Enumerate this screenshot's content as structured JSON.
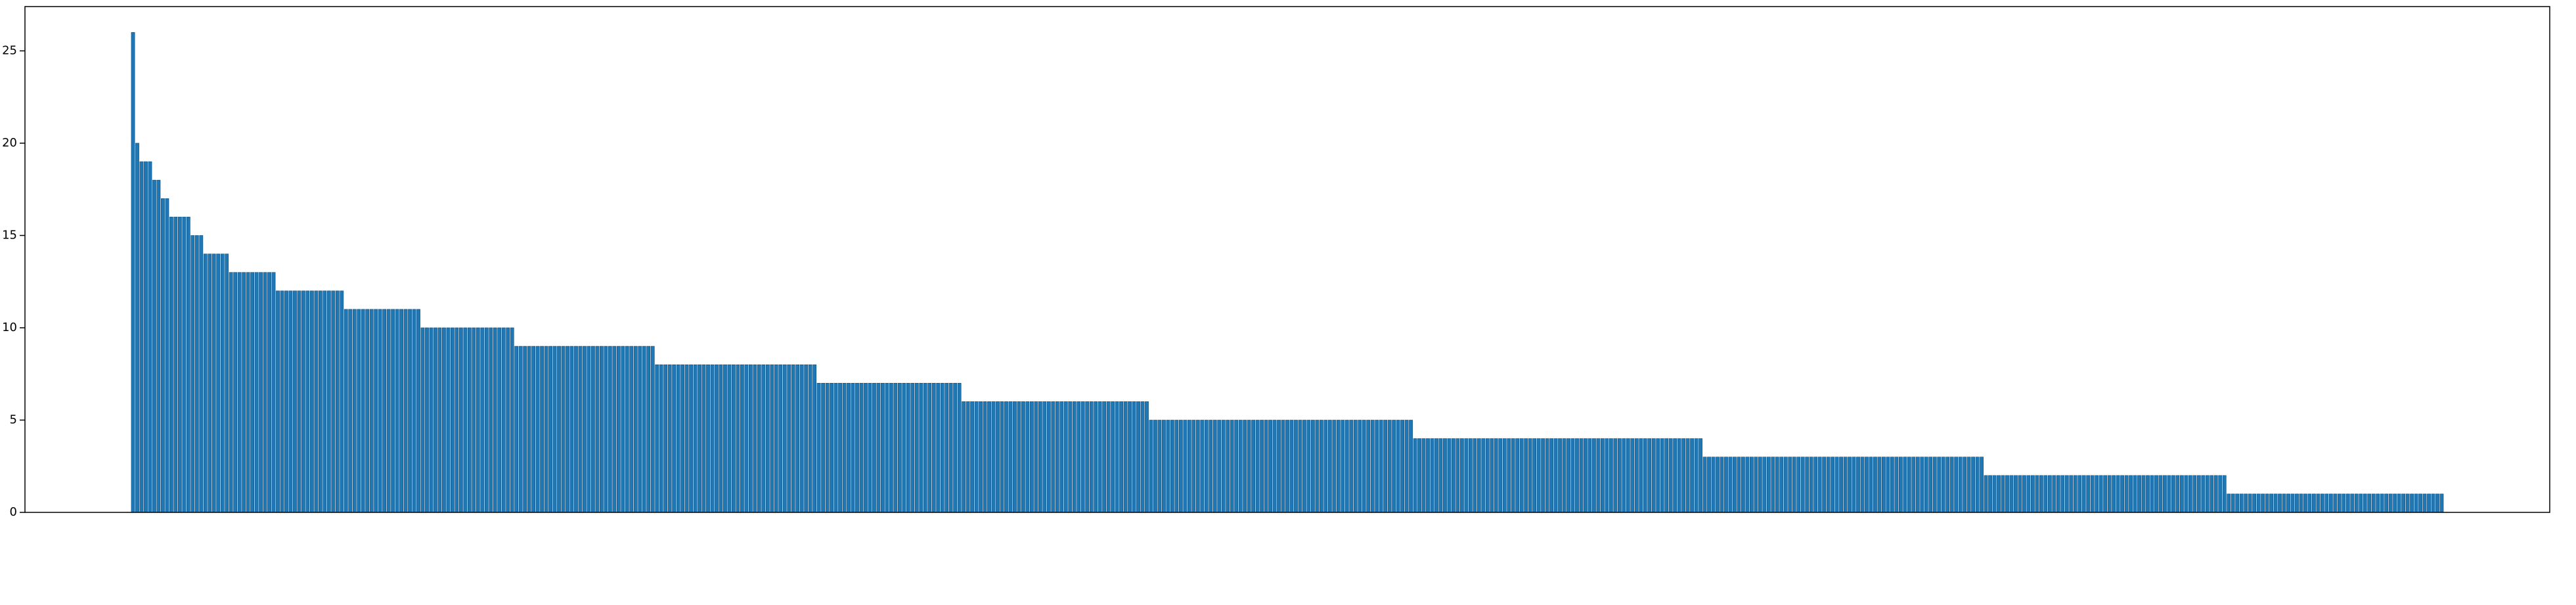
{
  "chart_data": {
    "type": "bar",
    "color": "#1f77b4",
    "ylim": [
      0,
      27.4
    ],
    "yticks": [
      0,
      5,
      10,
      15,
      20,
      25
    ],
    "values": [
      26,
      20,
      19,
      19,
      19,
      18,
      18,
      17,
      17,
      16,
      16,
      16,
      16,
      16,
      15,
      15,
      15,
      14,
      14,
      14,
      14,
      14,
      14,
      13,
      13,
      13,
      13,
      13,
      13,
      13,
      13,
      13,
      13,
      13,
      12,
      12,
      12,
      12,
      12,
      12,
      12,
      12,
      12,
      12,
      12,
      12,
      12,
      12,
      12,
      12,
      11,
      11,
      11,
      11,
      11,
      11,
      11,
      11,
      11,
      11,
      11,
      11,
      11,
      11,
      11,
      11,
      11,
      11,
      10,
      10,
      10,
      10,
      10,
      10,
      10,
      10,
      10,
      10,
      10,
      10,
      10,
      10,
      10,
      10,
      10,
      10,
      10,
      10,
      10,
      10,
      9,
      9,
      9,
      9,
      9,
      9,
      9,
      9,
      9,
      9,
      9,
      9,
      9,
      9,
      9,
      9,
      9,
      9,
      9,
      9,
      9,
      9,
      9,
      9,
      9,
      9,
      9,
      9,
      9,
      9,
      9,
      9,
      9,
      8,
      8,
      8,
      8,
      8,
      8,
      8,
      8,
      8,
      8,
      8,
      8,
      8,
      8,
      8,
      8,
      8,
      8,
      8,
      8,
      8,
      8,
      8,
      8,
      8,
      8,
      8,
      8,
      8,
      8,
      8,
      8,
      8,
      8,
      8,
      8,
      8,
      8,
      7,
      7,
      7,
      7,
      7,
      7,
      7,
      7,
      7,
      7,
      7,
      7,
      7,
      7,
      7,
      7,
      7,
      7,
      7,
      7,
      7,
      7,
      7,
      7,
      7,
      7,
      7,
      7,
      7,
      7,
      7,
      7,
      7,
      7,
      6,
      6,
      6,
      6,
      6,
      6,
      6,
      6,
      6,
      6,
      6,
      6,
      6,
      6,
      6,
      6,
      6,
      6,
      6,
      6,
      6,
      6,
      6,
      6,
      6,
      6,
      6,
      6,
      6,
      6,
      6,
      6,
      6,
      6,
      6,
      6,
      6,
      6,
      6,
      6,
      6,
      6,
      6,
      6,
      5,
      5,
      5,
      5,
      5,
      5,
      5,
      5,
      5,
      5,
      5,
      5,
      5,
      5,
      5,
      5,
      5,
      5,
      5,
      5,
      5,
      5,
      5,
      5,
      5,
      5,
      5,
      5,
      5,
      5,
      5,
      5,
      5,
      5,
      5,
      5,
      5,
      5,
      5,
      5,
      5,
      5,
      5,
      5,
      5,
      5,
      5,
      5,
      5,
      5,
      5,
      5,
      5,
      5,
      5,
      5,
      5,
      5,
      5,
      5,
      5,
      5,
      4,
      4,
      4,
      4,
      4,
      4,
      4,
      4,
      4,
      4,
      4,
      4,
      4,
      4,
      4,
      4,
      4,
      4,
      4,
      4,
      4,
      4,
      4,
      4,
      4,
      4,
      4,
      4,
      4,
      4,
      4,
      4,
      4,
      4,
      4,
      4,
      4,
      4,
      4,
      4,
      4,
      4,
      4,
      4,
      4,
      4,
      4,
      4,
      4,
      4,
      4,
      4,
      4,
      4,
      4,
      4,
      4,
      4,
      4,
      4,
      4,
      4,
      4,
      4,
      4,
      4,
      4,
      4,
      3,
      3,
      3,
      3,
      3,
      3,
      3,
      3,
      3,
      3,
      3,
      3,
      3,
      3,
      3,
      3,
      3,
      3,
      3,
      3,
      3,
      3,
      3,
      3,
      3,
      3,
      3,
      3,
      3,
      3,
      3,
      3,
      3,
      3,
      3,
      3,
      3,
      3,
      3,
      3,
      3,
      3,
      3,
      3,
      3,
      3,
      3,
      3,
      3,
      3,
      3,
      3,
      3,
      3,
      3,
      3,
      3,
      3,
      3,
      3,
      3,
      3,
      3,
      3,
      3,
      3,
      2,
      2,
      2,
      2,
      2,
      2,
      2,
      2,
      2,
      2,
      2,
      2,
      2,
      2,
      2,
      2,
      2,
      2,
      2,
      2,
      2,
      2,
      2,
      2,
      2,
      2,
      2,
      2,
      2,
      2,
      2,
      2,
      2,
      2,
      2,
      2,
      2,
      2,
      2,
      2,
      2,
      2,
      2,
      2,
      2,
      2,
      2,
      2,
      2,
      2,
      2,
      2,
      2,
      2,
      2,
      2,
      2,
      1,
      1,
      1,
      1,
      1,
      1,
      1,
      1,
      1,
      1,
      1,
      1,
      1,
      1,
      1,
      1,
      1,
      1,
      1,
      1,
      1,
      1,
      1,
      1,
      1,
      1,
      1,
      1,
      1,
      1,
      1,
      1,
      1,
      1,
      1,
      1,
      1,
      1,
      1,
      1,
      1,
      1,
      1,
      1,
      1,
      1,
      1,
      1,
      1,
      1,
      1
    ]
  }
}
